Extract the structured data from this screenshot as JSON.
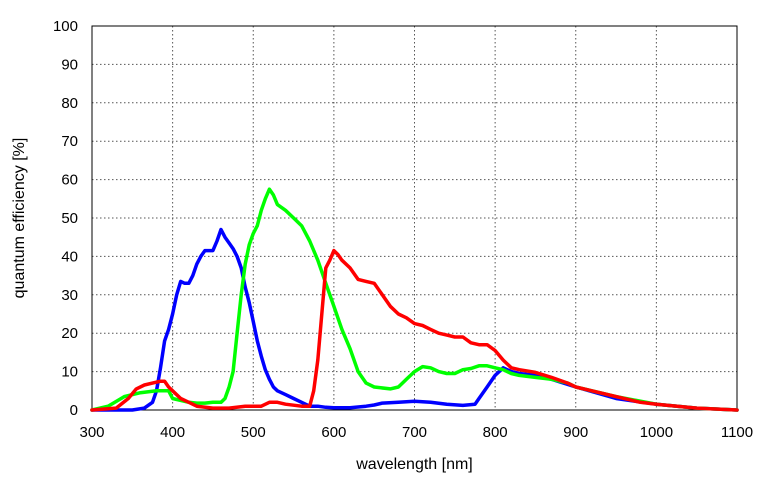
{
  "chart_data": {
    "type": "line",
    "title": "",
    "xlabel": "wavelength [nm]",
    "ylabel": "quantum efficiency [%]",
    "xlim": [
      300,
      1100
    ],
    "ylim": [
      0,
      100
    ],
    "xticks": [
      300,
      400,
      500,
      600,
      700,
      800,
      900,
      1000,
      1100
    ],
    "yticks": [
      0,
      10,
      20,
      30,
      40,
      50,
      60,
      70,
      80,
      90,
      100
    ],
    "grid": true,
    "legend": "none",
    "series": [
      {
        "color": "#0000ff",
        "points": [
          [
            300,
            0
          ],
          [
            330,
            0
          ],
          [
            350,
            0
          ],
          [
            365,
            0.5
          ],
          [
            375,
            2
          ],
          [
            380,
            5
          ],
          [
            385,
            11
          ],
          [
            390,
            18
          ],
          [
            395,
            21
          ],
          [
            400,
            25
          ],
          [
            405,
            30
          ],
          [
            410,
            33.5
          ],
          [
            415,
            33
          ],
          [
            420,
            33
          ],
          [
            425,
            35
          ],
          [
            430,
            38
          ],
          [
            435,
            40
          ],
          [
            440,
            41.5
          ],
          [
            445,
            41.5
          ],
          [
            450,
            41.5
          ],
          [
            455,
            44
          ],
          [
            460,
            47
          ],
          [
            465,
            45
          ],
          [
            470,
            43.5
          ],
          [
            475,
            42
          ],
          [
            480,
            40
          ],
          [
            485,
            37
          ],
          [
            490,
            32
          ],
          [
            495,
            28
          ],
          [
            500,
            23
          ],
          [
            505,
            18
          ],
          [
            510,
            14
          ],
          [
            515,
            10.5
          ],
          [
            520,
            8
          ],
          [
            525,
            6
          ],
          [
            530,
            5
          ],
          [
            540,
            4
          ],
          [
            550,
            3
          ],
          [
            560,
            2
          ],
          [
            570,
            1
          ],
          [
            580,
            1
          ],
          [
            590,
            0.7
          ],
          [
            600,
            0.6
          ],
          [
            620,
            0.6
          ],
          [
            640,
            1
          ],
          [
            650,
            1.3
          ],
          [
            660,
            1.8
          ],
          [
            680,
            2
          ],
          [
            700,
            2.3
          ],
          [
            720,
            2
          ],
          [
            740,
            1.5
          ],
          [
            760,
            1.2
          ],
          [
            775,
            1.5
          ],
          [
            780,
            3
          ],
          [
            790,
            6
          ],
          [
            800,
            9
          ],
          [
            810,
            11
          ],
          [
            820,
            10
          ],
          [
            830,
            9.5
          ],
          [
            850,
            9
          ],
          [
            870,
            8
          ],
          [
            900,
            6
          ],
          [
            950,
            3
          ],
          [
            1000,
            1.5
          ],
          [
            1050,
            0.5
          ],
          [
            1100,
            0
          ]
        ]
      },
      {
        "color": "#00ff00",
        "points": [
          [
            300,
            0
          ],
          [
            320,
            1
          ],
          [
            340,
            3.5
          ],
          [
            360,
            4.5
          ],
          [
            380,
            5
          ],
          [
            395,
            5
          ],
          [
            400,
            3
          ],
          [
            410,
            2.5
          ],
          [
            420,
            2
          ],
          [
            430,
            1.8
          ],
          [
            440,
            1.8
          ],
          [
            450,
            2
          ],
          [
            460,
            2
          ],
          [
            465,
            3
          ],
          [
            470,
            6
          ],
          [
            475,
            10
          ],
          [
            480,
            20
          ],
          [
            485,
            30
          ],
          [
            490,
            38
          ],
          [
            495,
            43
          ],
          [
            500,
            46
          ],
          [
            505,
            48
          ],
          [
            510,
            52
          ],
          [
            515,
            55
          ],
          [
            520,
            57.5
          ],
          [
            525,
            56
          ],
          [
            530,
            53.5
          ],
          [
            540,
            52
          ],
          [
            550,
            50
          ],
          [
            560,
            48
          ],
          [
            570,
            44
          ],
          [
            580,
            39
          ],
          [
            590,
            33
          ],
          [
            600,
            27
          ],
          [
            610,
            21
          ],
          [
            620,
            16
          ],
          [
            630,
            10
          ],
          [
            640,
            7
          ],
          [
            650,
            6
          ],
          [
            670,
            5.5
          ],
          [
            680,
            6
          ],
          [
            690,
            8
          ],
          [
            700,
            10
          ],
          [
            710,
            11.3
          ],
          [
            720,
            11
          ],
          [
            730,
            10
          ],
          [
            740,
            9.5
          ],
          [
            750,
            9.5
          ],
          [
            760,
            10.5
          ],
          [
            770,
            10.8
          ],
          [
            780,
            11.5
          ],
          [
            790,
            11.5
          ],
          [
            800,
            11
          ],
          [
            810,
            10.5
          ],
          [
            820,
            9.5
          ],
          [
            830,
            9
          ],
          [
            850,
            8.5
          ],
          [
            870,
            8
          ],
          [
            890,
            7
          ],
          [
            900,
            6
          ],
          [
            950,
            3.5
          ],
          [
            1000,
            1.5
          ],
          [
            1050,
            0.5
          ],
          [
            1100,
            0
          ]
        ]
      },
      {
        "color": "#ff0000",
        "points": [
          [
            300,
            0
          ],
          [
            330,
            0.5
          ],
          [
            345,
            3
          ],
          [
            355,
            5.5
          ],
          [
            365,
            6.5
          ],
          [
            375,
            7
          ],
          [
            385,
            7.5
          ],
          [
            390,
            7.5
          ],
          [
            395,
            6
          ],
          [
            400,
            5
          ],
          [
            410,
            3
          ],
          [
            420,
            2
          ],
          [
            430,
            1
          ],
          [
            450,
            0.5
          ],
          [
            470,
            0.5
          ],
          [
            490,
            1
          ],
          [
            500,
            1
          ],
          [
            510,
            1
          ],
          [
            520,
            2
          ],
          [
            530,
            2
          ],
          [
            540,
            1.5
          ],
          [
            560,
            1
          ],
          [
            570,
            1
          ],
          [
            575,
            5
          ],
          [
            580,
            13
          ],
          [
            585,
            25
          ],
          [
            590,
            37
          ],
          [
            595,
            39
          ],
          [
            600,
            41.5
          ],
          [
            605,
            40.5
          ],
          [
            610,
            39
          ],
          [
            620,
            37
          ],
          [
            630,
            34
          ],
          [
            640,
            33.5
          ],
          [
            650,
            33
          ],
          [
            660,
            30
          ],
          [
            670,
            27
          ],
          [
            680,
            25
          ],
          [
            690,
            24
          ],
          [
            700,
            22.5
          ],
          [
            710,
            22
          ],
          [
            720,
            21
          ],
          [
            730,
            20
          ],
          [
            740,
            19.5
          ],
          [
            750,
            19
          ],
          [
            760,
            19
          ],
          [
            770,
            17.5
          ],
          [
            780,
            17
          ],
          [
            790,
            17
          ],
          [
            800,
            15.5
          ],
          [
            810,
            13
          ],
          [
            820,
            11
          ],
          [
            830,
            10.5
          ],
          [
            850,
            9.8
          ],
          [
            870,
            8.5
          ],
          [
            890,
            7
          ],
          [
            900,
            6
          ],
          [
            920,
            5
          ],
          [
            950,
            3.5
          ],
          [
            980,
            2
          ],
          [
            1000,
            1.5
          ],
          [
            1050,
            0.5
          ],
          [
            1100,
            0
          ]
        ]
      }
    ]
  }
}
